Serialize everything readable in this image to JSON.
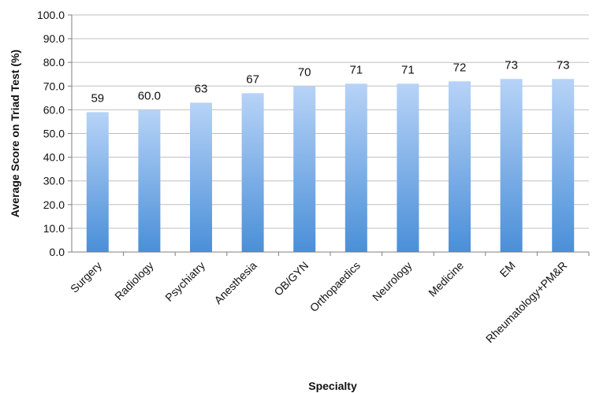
{
  "chart_data": {
    "type": "bar",
    "title": "",
    "xlabel": "Specialty",
    "ylabel": "Average Score on Triad Test (%)",
    "ylim": [
      0,
      100
    ],
    "ytick_step": 10,
    "ytick_labels": [
      "0.0",
      "10.0",
      "20.0",
      "30.0",
      "40.0",
      "50.0",
      "60.0",
      "70.0",
      "80.0",
      "90.0",
      "100.0"
    ],
    "grid": true,
    "categories": [
      "Surgery",
      "Radiology",
      "Psychiatry",
      "Anesthesia",
      "OB/GYN",
      "Orthopaedics",
      "Neurology",
      "Medicine",
      "EM",
      "Rheumatology+PM&R"
    ],
    "values": [
      59,
      60.0,
      63,
      67,
      70,
      71,
      71,
      72,
      73,
      73
    ],
    "data_labels": [
      "59",
      "60.0",
      "63",
      "67",
      "70",
      "71",
      "71",
      "72",
      "73",
      "73"
    ],
    "bar_color_top": "#b7d3f7",
    "bar_color_bottom": "#4a8fd8",
    "gridline_color": "#bfbfbf"
  }
}
